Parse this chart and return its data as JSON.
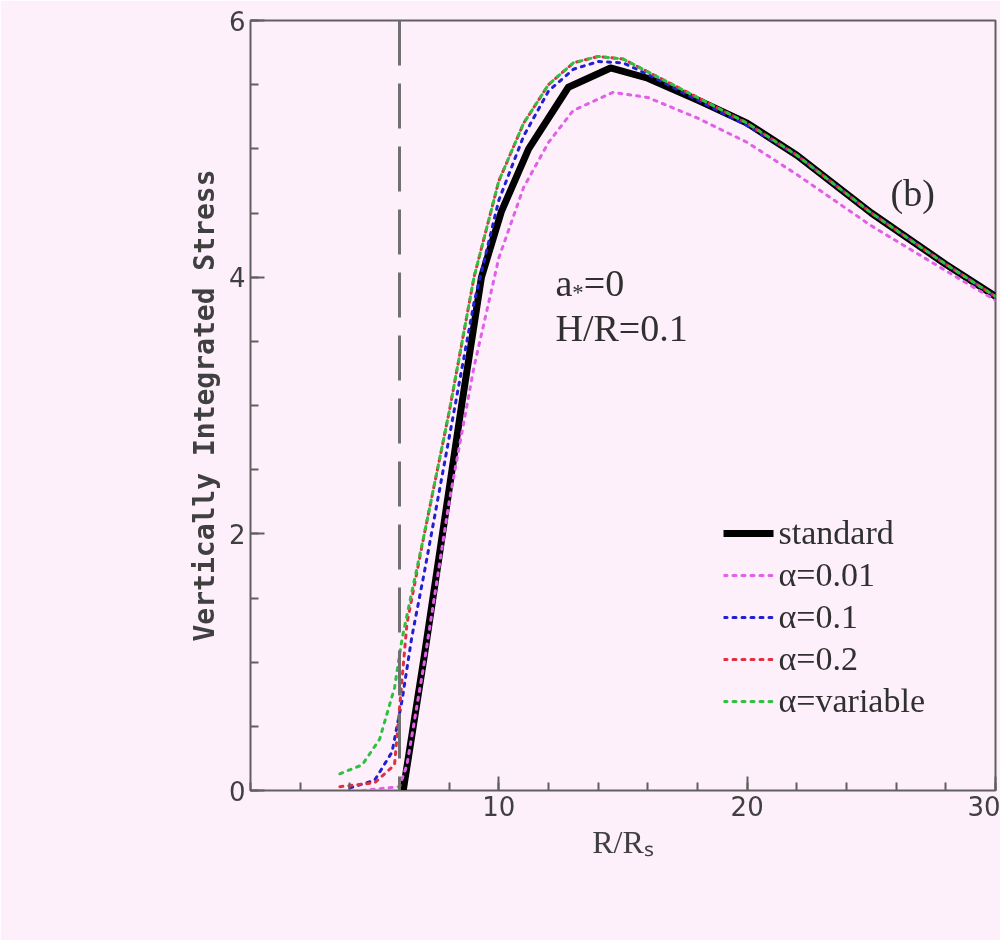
{
  "chart_data": {
    "type": "line",
    "xlabel": "R/Rₛ",
    "ylabel": "Vertically Integrated Stress",
    "annotations": [
      "(b)",
      "a$_{*}$=0",
      "H/R=0.1"
    ],
    "xlim": [
      0,
      30
    ],
    "xticks": [
      10,
      20,
      30
    ],
    "ylim": [
      0,
      6
    ],
    "yticks": [
      0,
      2,
      4,
      6
    ],
    "grid": false,
    "legend": "bottom right",
    "ref_lines": [
      {
        "axis": "x",
        "value": 6,
        "label": null,
        "color": "#707070",
        "line_style": "dashed"
      }
    ],
    "series": [
      {
        "name": "standard",
        "color": "#000000",
        "line_style": "solid",
        "x": [
          6.15,
          7,
          8,
          8.5,
          9.3,
          10.1,
          11.2,
          12.8,
          14.5,
          16,
          18,
          20,
          22,
          25,
          28,
          30
        ],
        "values": [
          0,
          1.05,
          2.35,
          3.0,
          4.0,
          4.51,
          5.0,
          5.48,
          5.63,
          5.55,
          5.38,
          5.2,
          4.95,
          4.5,
          4.1,
          3.85
        ]
      },
      {
        "name": "α=0.01",
        "color": "#e060e8",
        "line_style": "dotted",
        "x": [
          4.5,
          6,
          6.3,
          7,
          8,
          9,
          10,
          11,
          12,
          13,
          14.6,
          16,
          18,
          20,
          22,
          25,
          28,
          30
        ],
        "values": [
          0,
          0.03,
          0.2,
          1.0,
          2.25,
          3.3,
          4.15,
          4.7,
          5.05,
          5.3,
          5.44,
          5.4,
          5.24,
          5.05,
          4.8,
          4.4,
          4.05,
          3.82
        ]
      },
      {
        "name": "α=0.1",
        "color": "#2020d0",
        "line_style": "dotted",
        "x": [
          4,
          5,
          5.7,
          6.1,
          6.5,
          7,
          8,
          9,
          10,
          11,
          12,
          13,
          14,
          15,
          16,
          18,
          20,
          22,
          25,
          28,
          30
        ],
        "values": [
          0.02,
          0.08,
          0.3,
          0.7,
          1.2,
          1.7,
          2.75,
          3.8,
          4.6,
          5.1,
          5.45,
          5.62,
          5.68,
          5.67,
          5.58,
          5.38,
          5.18,
          4.95,
          4.5,
          4.1,
          3.85
        ]
      },
      {
        "name": "α=0.2",
        "color": "#e03040",
        "line_style": "dotted",
        "x": [
          3.6,
          5,
          5.8,
          6.3,
          7,
          8,
          9,
          10,
          11,
          12,
          13,
          14,
          15,
          16,
          18,
          20,
          22,
          25,
          28,
          30
        ],
        "values": [
          0.03,
          0.06,
          0.2,
          1.3,
          2.0,
          2.95,
          4.0,
          4.75,
          5.2,
          5.5,
          5.67,
          5.72,
          5.7,
          5.6,
          5.4,
          5.2,
          4.95,
          4.5,
          4.1,
          3.85
        ]
      },
      {
        "name": "α=variable",
        "color": "#30c040",
        "line_style": "dotted",
        "x": [
          3.6,
          4.5,
          5.2,
          5.8,
          6.1,
          6.5,
          7,
          8,
          9,
          10,
          11,
          12,
          13,
          14,
          15,
          16,
          18,
          20,
          22,
          25,
          28,
          30
        ],
        "values": [
          0.13,
          0.2,
          0.4,
          0.8,
          1.18,
          1.55,
          2.0,
          2.95,
          4.0,
          4.75,
          5.2,
          5.5,
          5.67,
          5.72,
          5.7,
          5.6,
          5.4,
          5.2,
          4.95,
          4.5,
          4.1,
          3.85
        ]
      }
    ]
  }
}
